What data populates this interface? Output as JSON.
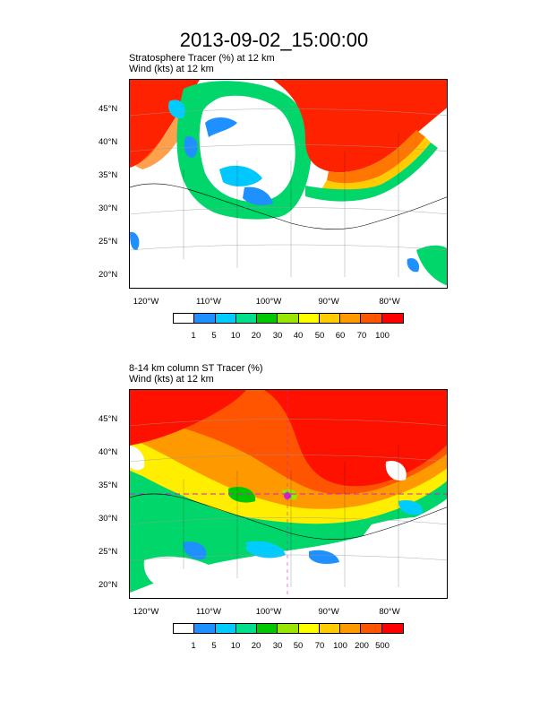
{
  "title": "2013-09-02_15:00:00",
  "panel1": {
    "title1": "Stratosphere Tracer   (%)    at   12 km",
    "title2": "Wind   (kts)     at   12 km",
    "lat_labels": [
      "45°N",
      "40°N",
      "35°N",
      "30°N",
      "25°N",
      "20°N"
    ],
    "lon_labels": [
      "120°W",
      "110°W",
      "100°W",
      "90°W",
      "80°W"
    ],
    "colorbar": {
      "colors": [
        "#ffffff",
        "#1e90ff",
        "#00ccff",
        "#00e08a",
        "#00c800",
        "#99e600",
        "#ffff00",
        "#ffcc00",
        "#ff9900",
        "#ff5500",
        "#ff0000"
      ],
      "labels": [
        "1",
        "5",
        "10",
        "20",
        "30",
        "40",
        "50",
        "60",
        "70",
        "100"
      ]
    }
  },
  "panel2": {
    "title1": "8-14 km column ST Tracer   (%)",
    "title2": "Wind   (kts)     at   12 km",
    "lat_labels": [
      "45°N",
      "40°N",
      "35°N",
      "30°N",
      "25°N",
      "20°N"
    ],
    "lon_labels": [
      "120°W",
      "110°W",
      "100°W",
      "90°W",
      "80°W"
    ],
    "colorbar": {
      "colors": [
        "#ffffff",
        "#1e90ff",
        "#00ccff",
        "#00e08a",
        "#00c800",
        "#99e600",
        "#ffff00",
        "#ffcc00",
        "#ff9900",
        "#ff5500",
        "#ff0000"
      ],
      "labels": [
        "1",
        "5",
        "10",
        "20",
        "30",
        "50",
        "70",
        "100",
        "200",
        "500"
      ]
    }
  }
}
